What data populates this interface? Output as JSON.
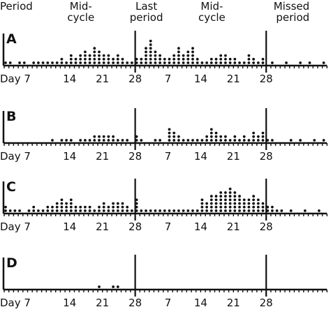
{
  "chart_data": {
    "type": "scatter",
    "headers": [
      {
        "id": "period",
        "lines": [
          "Period"
        ],
        "day": 0
      },
      {
        "id": "mid-cycle-1",
        "lines": [
          "Mid-",
          "cycle"
        ],
        "day": 14
      },
      {
        "id": "last-period",
        "lines": [
          "Last",
          "period"
        ],
        "day": 28
      },
      {
        "id": "mid-cycle-2",
        "lines": [
          "Mid-",
          "cycle"
        ],
        "day": 42
      },
      {
        "id": "missed-period",
        "lines": [
          "Missed",
          "period"
        ],
        "day": 56
      }
    ],
    "x_ticks": [
      {
        "label": "Day 7",
        "day": 7
      },
      {
        "label": "14",
        "day": 14
      },
      {
        "label": "21",
        "day": 21
      },
      {
        "label": "28",
        "day": 28
      },
      {
        "label": "7",
        "day": 35
      },
      {
        "label": "14",
        "day": 42
      },
      {
        "label": "21",
        "day": 49
      },
      {
        "label": "28",
        "day": 56
      }
    ],
    "xlim": [
      0,
      69
    ],
    "markers": [
      28,
      56
    ],
    "panels": [
      {
        "label": "A",
        "counts": [
          1,
          1,
          0,
          1,
          1,
          0,
          1,
          1,
          1,
          1,
          1,
          1,
          2,
          1,
          3,
          2,
          3,
          4,
          3,
          5,
          4,
          3,
          3,
          2,
          3,
          2,
          1,
          1,
          2,
          2,
          5,
          7,
          4,
          3,
          2,
          2,
          3,
          5,
          3,
          4,
          5,
          2,
          1,
          1,
          2,
          2,
          3,
          3,
          2,
          2,
          1,
          1,
          3,
          2,
          1,
          2,
          0,
          1,
          0,
          0,
          1,
          0,
          0,
          1,
          0,
          1,
          0,
          0,
          1,
          0
        ]
      },
      {
        "label": "B",
        "counts": [
          0,
          0,
          0,
          0,
          0,
          0,
          0,
          0,
          0,
          0,
          1,
          0,
          1,
          1,
          1,
          0,
          1,
          1,
          1,
          2,
          2,
          2,
          2,
          2,
          1,
          1,
          1,
          0,
          2,
          1,
          0,
          0,
          1,
          1,
          0,
          4,
          3,
          2,
          1,
          1,
          1,
          1,
          1,
          2,
          4,
          3,
          2,
          2,
          1,
          2,
          1,
          2,
          1,
          3,
          2,
          3,
          1,
          1,
          0,
          0,
          0,
          1,
          0,
          1,
          0,
          0,
          1,
          0,
          1,
          0
        ]
      },
      {
        "label": "C",
        "counts": [
          2,
          1,
          1,
          1,
          0,
          1,
          2,
          1,
          1,
          2,
          2,
          3,
          4,
          3,
          4,
          2,
          2,
          2,
          2,
          1,
          2,
          3,
          2,
          3,
          3,
          3,
          2,
          1,
          4,
          1,
          1,
          1,
          1,
          1,
          1,
          1,
          1,
          1,
          1,
          1,
          1,
          1,
          4,
          3,
          5,
          5,
          6,
          6,
          7,
          6,
          5,
          4,
          4,
          5,
          4,
          3,
          2,
          2,
          1,
          1,
          0,
          1,
          0,
          0,
          1,
          0,
          0,
          1,
          0,
          0
        ]
      },
      {
        "label": "D",
        "counts": [
          0,
          0,
          0,
          0,
          0,
          0,
          0,
          0,
          0,
          0,
          0,
          0,
          0,
          0,
          0,
          0,
          0,
          0,
          0,
          0,
          1,
          0,
          0,
          1,
          1,
          0,
          0,
          0,
          0,
          0,
          0,
          0,
          0,
          0,
          0,
          0,
          0,
          0,
          0,
          0,
          0,
          0,
          0,
          0,
          0,
          0,
          0,
          0,
          0,
          0,
          0,
          0,
          0,
          0,
          0,
          0,
          0,
          0,
          0,
          0,
          0,
          0,
          0,
          0,
          0,
          0,
          0,
          0,
          0,
          0
        ]
      }
    ]
  }
}
